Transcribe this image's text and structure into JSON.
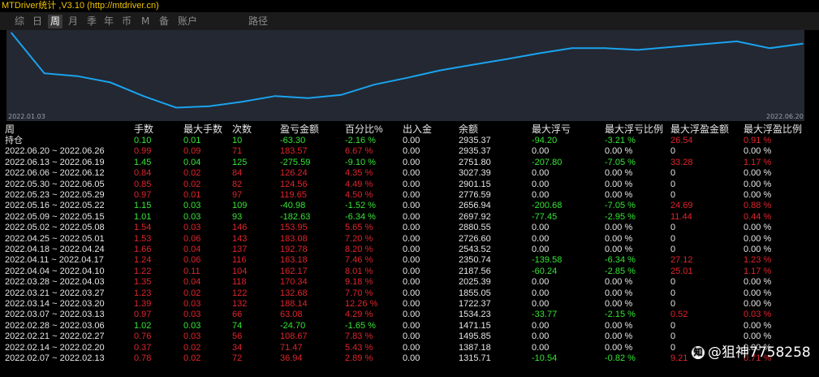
{
  "window": {
    "title": "MTDriver统计 ,V3.10 (http://mtdriver.cn)"
  },
  "tabs": [
    {
      "label": "综",
      "active": false
    },
    {
      "label": "日",
      "active": false
    },
    {
      "label": "周",
      "active": true
    },
    {
      "label": "月",
      "active": false
    },
    {
      "label": "季",
      "active": false
    },
    {
      "label": "年",
      "active": false
    },
    {
      "label": "币",
      "active": false
    },
    {
      "label": "M",
      "active": false
    },
    {
      "label": "备",
      "active": false
    },
    {
      "label": "账户",
      "active": false
    },
    {
      "label": "路径",
      "active": false
    }
  ],
  "chart_data": {
    "type": "line",
    "title": "",
    "xlabel": "",
    "ylabel": "",
    "x_start_label": "2022.01.03",
    "x_end_label": "2022.06.20",
    "x": [
      "2022.01.03",
      "2022.01.10",
      "2022.01.17",
      "2022.01.24",
      "2022.01.31",
      "2022.02.07",
      "2022.02.14",
      "2022.02.21",
      "2022.02.28",
      "2022.03.07",
      "2022.03.14",
      "2022.03.21",
      "2022.03.28",
      "2022.04.04",
      "2022.04.11",
      "2022.04.18",
      "2022.04.25",
      "2022.05.02",
      "2022.05.09",
      "2022.05.16",
      "2022.05.23",
      "2022.05.30",
      "2022.06.06",
      "2022.06.13",
      "2022.06.20"
    ],
    "values": [
      2135,
      1780,
      1755,
      1700,
      1580,
      1478,
      1490,
      1530,
      1580,
      1561,
      1590,
      1680,
      1740,
      1805,
      1855,
      1903,
      1955,
      2000,
      2000,
      1985,
      2010,
      2035,
      2060,
      2000,
      2040
    ],
    "ylim": [
      1460,
      2145
    ],
    "grid": false,
    "legend": "none",
    "line_color": "#1aa3ee"
  },
  "table": {
    "headers": [
      "周",
      "手数",
      "最大手数",
      "次数",
      "盈亏金额",
      "百分比%",
      "出入金",
      "余额",
      "最大浮亏",
      "最大浮亏比例",
      "最大浮盈金额",
      "最大浮盈比例"
    ],
    "rows": [
      {
        "label": "持仓",
        "color": "green",
        "cells": [
          "0.10",
          "0.01",
          "10",
          "-63.30",
          "-2.16 %",
          "0.00",
          "2935.37",
          "-94.20",
          "-3.21 %",
          "26.54",
          "0.91 %"
        ],
        "floss_color": "green",
        "fprofit_color": "red"
      },
      {
        "label": "2022.06.20 ~ 2022.06.26",
        "color": "red",
        "cells": [
          "0.99",
          "0.09",
          "71",
          "183.57",
          "6.67 %",
          "0.00",
          "2935.37",
          "0.00",
          "0.00 %",
          "0",
          "0.00 %"
        ],
        "floss_color": "white",
        "fprofit_color": "white"
      },
      {
        "label": "2022.06.13 ~ 2022.06.19",
        "color": "green",
        "cells": [
          "1.45",
          "0.04",
          "125",
          "-275.59",
          "-9.10 %",
          "0.00",
          "2751.80",
          "-207.80",
          "-7.05 %",
          "33.28",
          "1.17 %"
        ],
        "floss_color": "green",
        "fprofit_color": "red"
      },
      {
        "label": "2022.06.06 ~ 2022.06.12",
        "color": "red",
        "cells": [
          "0.84",
          "0.02",
          "84",
          "126.24",
          "4.35 %",
          "0.00",
          "3027.39",
          "0.00",
          "0.00 %",
          "0",
          "0.00 %"
        ],
        "floss_color": "white",
        "fprofit_color": "white"
      },
      {
        "label": "2022.05.30 ~ 2022.06.05",
        "color": "red",
        "cells": [
          "0.85",
          "0.02",
          "82",
          "124.56",
          "4.49 %",
          "0.00",
          "2901.15",
          "0.00",
          "0.00 %",
          "0",
          "0.00 %"
        ],
        "floss_color": "white",
        "fprofit_color": "white"
      },
      {
        "label": "2022.05.23 ~ 2022.05.29",
        "color": "red",
        "cells": [
          "0.97",
          "0.01",
          "97",
          "119.65",
          "4.50 %",
          "0.00",
          "2776.59",
          "0.00",
          "0.00 %",
          "0",
          "0.00 %"
        ],
        "floss_color": "white",
        "fprofit_color": "white"
      },
      {
        "label": "2022.05.16 ~ 2022.05.22",
        "color": "green",
        "cells": [
          "1.15",
          "0.03",
          "109",
          "-40.98",
          "-1.52 %",
          "0.00",
          "2656.94",
          "-200.68",
          "-7.05 %",
          "24.69",
          "0.88 %"
        ],
        "floss_color": "green",
        "fprofit_color": "red"
      },
      {
        "label": "2022.05.09 ~ 2022.05.15",
        "color": "green",
        "cells": [
          "1.01",
          "0.03",
          "93",
          "-182.63",
          "-6.34 %",
          "0.00",
          "2697.92",
          "-77.45",
          "-2.95 %",
          "11.44",
          "0.44 %"
        ],
        "floss_color": "green",
        "fprofit_color": "red"
      },
      {
        "label": "2022.05.02 ~ 2022.05.08",
        "color": "red",
        "cells": [
          "1.54",
          "0.03",
          "146",
          "153.95",
          "5.65 %",
          "0.00",
          "2880.55",
          "0.00",
          "0.00 %",
          "0",
          "0.00 %"
        ],
        "floss_color": "white",
        "fprofit_color": "white"
      },
      {
        "label": "2022.04.25 ~ 2022.05.01",
        "color": "red",
        "cells": [
          "1.53",
          "0.06",
          "143",
          "183.08",
          "7.20 %",
          "0.00",
          "2726.60",
          "0.00",
          "0.00 %",
          "0",
          "0.00 %"
        ],
        "floss_color": "white",
        "fprofit_color": "white"
      },
      {
        "label": "2022.04.18 ~ 2022.04.24",
        "color": "red",
        "cells": [
          "1.66",
          "0.04",
          "137",
          "192.78",
          "8.20 %",
          "0.00",
          "2543.52",
          "0.00",
          "0.00 %",
          "0",
          "0.00 %"
        ],
        "floss_color": "white",
        "fprofit_color": "white"
      },
      {
        "label": "2022.04.11 ~ 2022.04.17",
        "color": "red",
        "cells": [
          "1.24",
          "0.06",
          "116",
          "163.18",
          "7.46 %",
          "0.00",
          "2350.74",
          "-139.58",
          "-6.34 %",
          "27.12",
          "1.23 %"
        ],
        "floss_color": "green",
        "fprofit_color": "red"
      },
      {
        "label": "2022.04.04 ~ 2022.04.10",
        "color": "red",
        "cells": [
          "1.22",
          "0.11",
          "104",
          "162.17",
          "8.01 %",
          "0.00",
          "2187.56",
          "-60.24",
          "-2.85 %",
          "25.01",
          "1.17 %"
        ],
        "floss_color": "green",
        "fprofit_color": "red"
      },
      {
        "label": "2022.03.28 ~ 2022.04.03",
        "color": "red",
        "cells": [
          "1.35",
          "0.04",
          "118",
          "170.34",
          "9.18 %",
          "0.00",
          "2025.39",
          "0.00",
          "0.00 %",
          "0",
          "0.00 %"
        ],
        "floss_color": "white",
        "fprofit_color": "white"
      },
      {
        "label": "2022.03.21 ~ 2022.03.27",
        "color": "red",
        "cells": [
          "1.23",
          "0.02",
          "122",
          "132.68",
          "7.70 %",
          "0.00",
          "1855.05",
          "0.00",
          "0.00 %",
          "0",
          "0.00 %"
        ],
        "floss_color": "white",
        "fprofit_color": "white"
      },
      {
        "label": "2022.03.14 ~ 2022.03.20",
        "color": "red",
        "cells": [
          "1.39",
          "0.03",
          "132",
          "188.14",
          "12.26 %",
          "0.00",
          "1722.37",
          "0.00",
          "0.00 %",
          "0",
          "0.00 %"
        ],
        "floss_color": "white",
        "fprofit_color": "white"
      },
      {
        "label": "2022.03.07 ~ 2022.03.13",
        "color": "red",
        "cells": [
          "0.97",
          "0.03",
          "66",
          "63.08",
          "4.29 %",
          "0.00",
          "1534.23",
          "-33.77",
          "-2.15 %",
          "0.52",
          "0.03 %"
        ],
        "floss_color": "green",
        "fprofit_color": "red"
      },
      {
        "label": "2022.02.28 ~ 2022.03.06",
        "color": "green",
        "cells": [
          "1.02",
          "0.03",
          "74",
          "-24.70",
          "-1.65 %",
          "0.00",
          "1471.15",
          "0.00",
          "0.00 %",
          "0",
          "0.00 %"
        ],
        "floss_color": "white",
        "fprofit_color": "white"
      },
      {
        "label": "2022.02.21 ~ 2022.02.27",
        "color": "red",
        "cells": [
          "0.76",
          "0.03",
          "56",
          "108.67",
          "7.83 %",
          "0.00",
          "1495.85",
          "0.00",
          "0.00 %",
          "0",
          "0.00 %"
        ],
        "floss_color": "white",
        "fprofit_color": "white"
      },
      {
        "label": "2022.02.14 ~ 2022.02.20",
        "color": "red",
        "cells": [
          "0.37",
          "0.02",
          "34",
          "71.47",
          "5.43 %",
          "0.00",
          "1387.18",
          "0.00",
          "0.00 %",
          "0",
          "0.00 %"
        ],
        "floss_color": "white",
        "fprofit_color": "white"
      },
      {
        "label": "2022.02.07 ~ 2022.02.13",
        "color": "red",
        "cells": [
          "0.78",
          "0.02",
          "72",
          "36.94",
          "2.89 %",
          "0.00",
          "1315.71",
          "-10.54",
          "-0.82 %",
          "9.21",
          "0.71 %"
        ],
        "floss_color": "green",
        "fprofit_color": "red"
      }
    ]
  },
  "watermark": {
    "icon": "zhihu-icon",
    "icon_glyph": "知",
    "text": "@狙神7758258"
  }
}
